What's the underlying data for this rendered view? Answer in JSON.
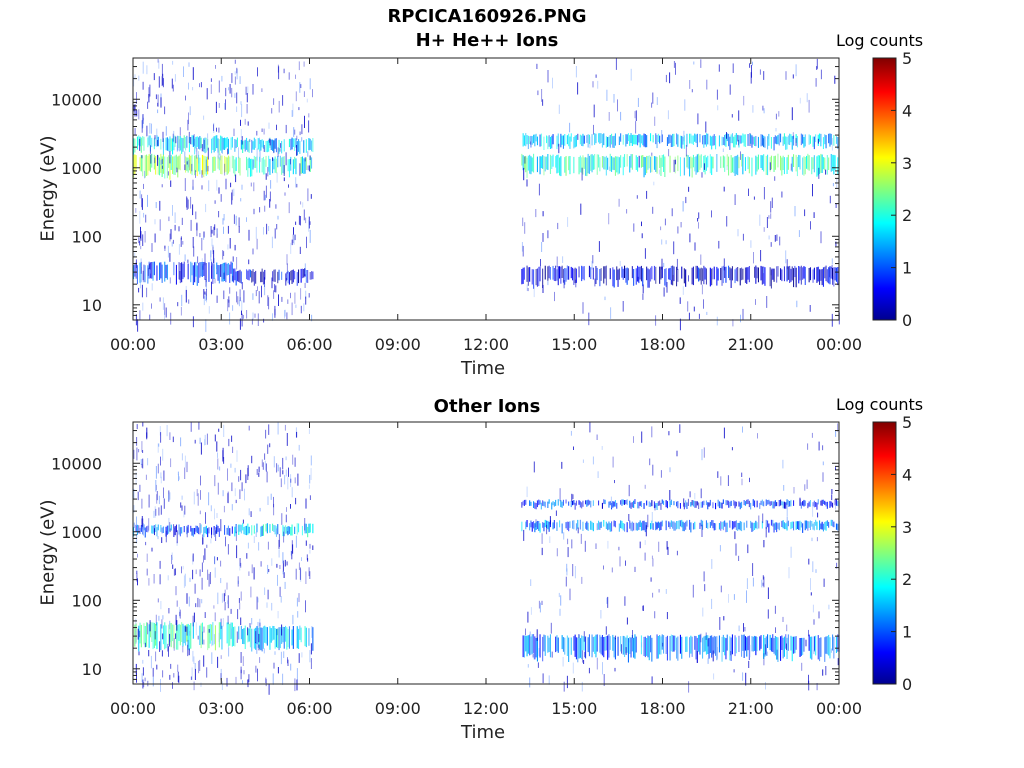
{
  "figure": {
    "title_line1": "RPCICA160926.PNG"
  },
  "colormap": {
    "name": "jet",
    "stops": [
      "#00008f",
      "#0000ff",
      "#00ffff",
      "#ffff00",
      "#ff0000",
      "#800000"
    ]
  },
  "chart_data": [
    {
      "type": "heatmap",
      "title": "H+ He++ Ions",
      "xlabel": "Time",
      "ylabel": "Energy (eV)",
      "x_ticks": [
        "00:00",
        "03:00",
        "06:00",
        "09:00",
        "12:00",
        "15:00",
        "18:00",
        "21:00",
        "00:00"
      ],
      "xlim_hours": [
        0,
        24
      ],
      "y_scale": "log",
      "ylim": [
        6,
        40000
      ],
      "y_ticks": [
        "10",
        "100",
        "1000",
        "10000"
      ],
      "colorbar": {
        "label": "Log counts",
        "range": [
          0,
          5
        ],
        "ticks": [
          "0",
          "1",
          "2",
          "3",
          "4",
          "5"
        ]
      },
      "data_gaps_hours": [
        [
          6.1,
          13.2
        ]
      ],
      "bands": [
        {
          "t_start": 0.0,
          "t_end": 3.4,
          "e_low": 700,
          "e_high": 1500,
          "log_counts": 2.6
        },
        {
          "t_start": 0.0,
          "t_end": 3.4,
          "e_low": 1600,
          "e_high": 2800,
          "log_counts": 1.8
        },
        {
          "t_start": 3.4,
          "t_end": 6.1,
          "e_low": 750,
          "e_high": 1400,
          "log_counts": 2.0
        },
        {
          "t_start": 3.4,
          "t_end": 6.1,
          "e_low": 1600,
          "e_high": 2600,
          "log_counts": 1.6
        },
        {
          "t_start": 0.0,
          "t_end": 3.4,
          "e_low": 20,
          "e_high": 40,
          "log_counts": 0.9
        },
        {
          "t_start": 3.4,
          "t_end": 6.1,
          "e_low": 20,
          "e_high": 32,
          "log_counts": 0.5
        },
        {
          "t_start": 13.2,
          "t_end": 24.0,
          "e_low": 750,
          "e_high": 1500,
          "log_counts": 2.0
        },
        {
          "t_start": 13.2,
          "t_end": 24.0,
          "e_low": 1900,
          "e_high": 3000,
          "log_counts": 1.5
        },
        {
          "t_start": 13.2,
          "t_end": 24.0,
          "e_low": 18,
          "e_high": 35,
          "log_counts": 0.4
        }
      ]
    },
    {
      "type": "heatmap",
      "title": "Other Ions",
      "xlabel": "Time",
      "ylabel": "Energy (eV)",
      "x_ticks": [
        "00:00",
        "03:00",
        "06:00",
        "09:00",
        "12:00",
        "15:00",
        "18:00",
        "21:00",
        "00:00"
      ],
      "xlim_hours": [
        0,
        24
      ],
      "y_scale": "log",
      "ylim": [
        6,
        40000
      ],
      "y_ticks": [
        "10",
        "100",
        "1000",
        "10000"
      ],
      "colorbar": {
        "label": "Log counts",
        "range": [
          0,
          5
        ],
        "ticks": [
          "0",
          "1",
          "2",
          "3",
          "4",
          "5"
        ]
      },
      "data_gaps_hours": [
        [
          6.1,
          13.2
        ]
      ],
      "bands": [
        {
          "t_start": 0.0,
          "t_end": 3.4,
          "e_low": 850,
          "e_high": 1200,
          "log_counts": 1.0
        },
        {
          "t_start": 3.4,
          "t_end": 6.1,
          "e_low": 850,
          "e_high": 1250,
          "log_counts": 1.7
        },
        {
          "t_start": 0.0,
          "t_end": 3.4,
          "e_low": 18,
          "e_high": 45,
          "log_counts": 2.1
        },
        {
          "t_start": 3.4,
          "t_end": 6.1,
          "e_low": 18,
          "e_high": 40,
          "log_counts": 1.6
        },
        {
          "t_start": 13.2,
          "t_end": 24.0,
          "e_low": 1000,
          "e_high": 1400,
          "log_counts": 1.2
        },
        {
          "t_start": 13.2,
          "t_end": 24.0,
          "e_low": 2200,
          "e_high": 2800,
          "log_counts": 0.9
        },
        {
          "t_start": 13.2,
          "t_end": 24.0,
          "e_low": 13,
          "e_high": 30,
          "log_counts": 1.2
        }
      ]
    }
  ]
}
